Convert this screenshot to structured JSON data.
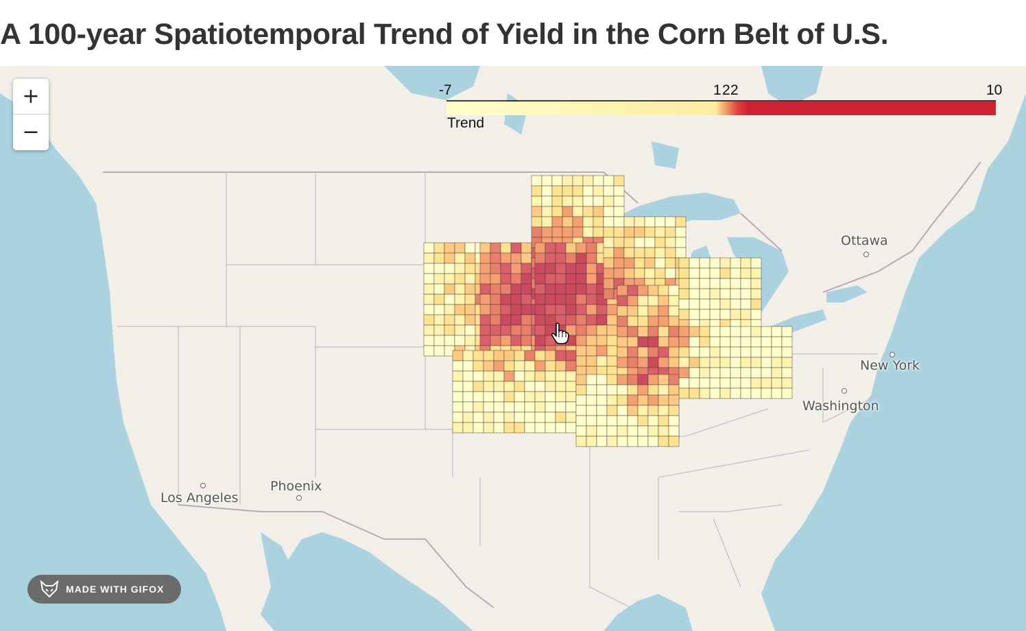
{
  "title": "A 100-year Spatiotemporal Trend of Yield in the Corn Belt of U.S.",
  "zoom": {
    "in_label": "+",
    "out_label": "−"
  },
  "legend": {
    "title": "Trend",
    "ticks": [
      {
        "label": "-7",
        "value": -7
      },
      {
        "label": "1",
        "value": 1
      },
      {
        "label": "2",
        "value": 2
      },
      {
        "label": "2",
        "value": 2.3
      },
      {
        "label": "10",
        "value": 10
      }
    ],
    "min": -7,
    "max": 10,
    "colors": {
      "low": "#ffffcc",
      "mid": "#fed976",
      "high": "#cc2233"
    }
  },
  "cities": [
    {
      "name": "Ottawa"
    },
    {
      "name": "New York"
    },
    {
      "name": "Washington"
    },
    {
      "name": "Phoenix"
    },
    {
      "name": "Los Angeles"
    }
  ],
  "watermark": {
    "text": "MADE WITH GIFOX",
    "icon": "fox-icon"
  },
  "colors": {
    "water": "#aad3df",
    "land": "#f2efe9",
    "border": "#b9a8b8"
  }
}
